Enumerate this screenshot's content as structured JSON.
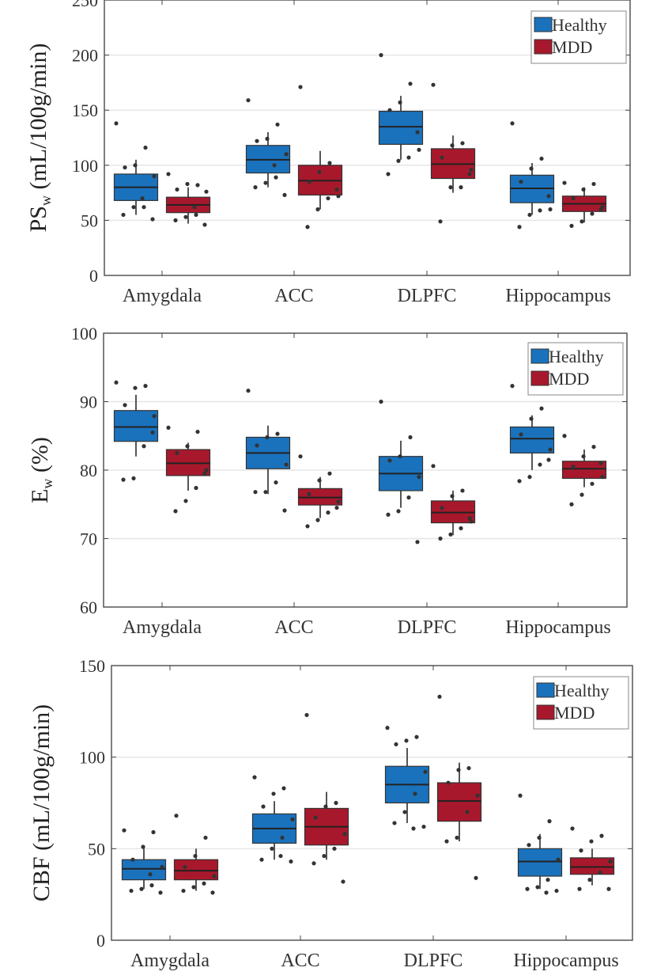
{
  "colors": {
    "healthy": "#1a72bd",
    "mdd": "#a8182c",
    "point": "#333333",
    "grid": "#e6e6e6"
  },
  "chart_data": [
    {
      "type": "box",
      "ylabel": {
        "main": "PS",
        "sub": "w",
        "unit": " (mL/100g/min)"
      },
      "ylim": [
        0,
        250
      ],
      "yticks": [
        "0",
        "50",
        "100",
        "150",
        "200",
        "250"
      ],
      "categories": [
        "Amygdala",
        "ACC",
        "DLPFC",
        "Hippocampus"
      ],
      "legend": {
        "position": "top-right",
        "entries": [
          "Healthy",
          "MDD"
        ]
      },
      "grid": true,
      "series": [
        {
          "name": "Healthy",
          "boxes": [
            {
              "q1": 68,
              "median": 80,
              "q3": 92,
              "whisker_low": 55,
              "whisker_high": 105,
              "points": [
                138,
                116,
                100,
                98,
                90,
                62,
                62,
                55,
                51,
                70
              ]
            },
            {
              "q1": 93,
              "median": 105,
              "q3": 118,
              "whisker_low": 80,
              "whisker_high": 130,
              "points": [
                159,
                137,
                124,
                122,
                110,
                89,
                84,
                80,
                73,
                100
              ]
            },
            {
              "q1": 119,
              "median": 135,
              "q3": 149,
              "whisker_low": 105,
              "whisker_high": 163,
              "points": [
                200,
                174,
                157,
                150,
                114,
                107,
                104,
                92,
                130
              ]
            },
            {
              "q1": 66,
              "median": 79,
              "q3": 91,
              "whisker_low": 55,
              "whisker_high": 102,
              "points": [
                138,
                106,
                97,
                85,
                60,
                59,
                55,
                44,
                72
              ]
            }
          ]
        },
        {
          "name": "MDD",
          "boxes": [
            {
              "q1": 57,
              "median": 64,
              "q3": 71,
              "whisker_low": 47,
              "whisker_high": 80,
              "points": [
                92,
                82,
                83,
                78,
                76,
                55,
                53,
                50,
                46,
                62
              ]
            },
            {
              "q1": 73,
              "median": 86,
              "q3": 100,
              "whisker_low": 60,
              "whisker_high": 113,
              "points": [
                171,
                102,
                94,
                85,
                72,
                70,
                60,
                44,
                78
              ]
            },
            {
              "q1": 88,
              "median": 101,
              "q3": 115,
              "whisker_low": 75,
              "whisker_high": 127,
              "points": [
                173,
                120,
                118,
                107,
                96,
                80,
                80,
                49,
                92
              ]
            },
            {
              "q1": 58,
              "median": 65,
              "q3": 72,
              "whisker_low": 48,
              "whisker_high": 80,
              "points": [
                84,
                83,
                78,
                70,
                62,
                56,
                49,
                45,
                60
              ]
            }
          ]
        }
      ]
    },
    {
      "type": "box",
      "ylabel": {
        "main": "E",
        "sub": "w",
        "unit": " (%)"
      },
      "ylim": [
        60,
        100
      ],
      "yticks": [
        "60",
        "70",
        "80",
        "90",
        "100"
      ],
      "categories": [
        "Amygdala",
        "ACC",
        "DLPFC",
        "Hippocampus"
      ],
      "legend": {
        "position": "top-right",
        "entries": [
          "Healthy",
          "MDD"
        ]
      },
      "grid": true,
      "series": [
        {
          "name": "Healthy",
          "boxes": [
            {
              "q1": 84.2,
              "median": 86.3,
              "q3": 88.7,
              "whisker_low": 82,
              "whisker_high": 91,
              "points": [
                92.8,
                92.3,
                92.0,
                89.5,
                87.9,
                83.5,
                78.8,
                78.6,
                85.5
              ]
            },
            {
              "q1": 80.2,
              "median": 82.5,
              "q3": 84.8,
              "whisker_low": 76.5,
              "whisker_high": 86.5,
              "points": [
                91.6,
                85.3,
                84.8,
                83.6,
                80.8,
                78.2,
                76.8,
                76.8,
                74.1
              ]
            },
            {
              "q1": 77.0,
              "median": 79.5,
              "q3": 82.0,
              "whisker_low": 74.5,
              "whisker_high": 84.3,
              "points": [
                90.0,
                84.8,
                82.0,
                81.4,
                79.0,
                76.0,
                74.0,
                73.5,
                69.5
              ]
            },
            {
              "q1": 82.5,
              "median": 84.6,
              "q3": 86.3,
              "whisker_low": 80,
              "whisker_high": 88,
              "points": [
                92.3,
                89.0,
                87.5,
                85.2,
                83.0,
                80.8,
                79.0,
                78.4,
                81.5
              ]
            }
          ]
        },
        {
          "name": "MDD",
          "boxes": [
            {
              "q1": 79.2,
              "median": 81.0,
              "q3": 83.0,
              "whisker_low": 77,
              "whisker_high": 84,
              "points": [
                86.2,
                85.6,
                83.5,
                82.5,
                80.0,
                77.4,
                75.5,
                74.0,
                79.5
              ]
            },
            {
              "q1": 74.9,
              "median": 76.0,
              "q3": 77.3,
              "whisker_low": 73,
              "whisker_high": 79,
              "points": [
                82.0,
                79.5,
                78.5,
                76.5,
                75.4,
                73.8,
                72.7,
                71.8,
                74.5
              ]
            },
            {
              "q1": 72.3,
              "median": 73.8,
              "q3": 75.5,
              "whisker_low": 70.5,
              "whisker_high": 77,
              "points": [
                80.6,
                77.0,
                76.2,
                74.5,
                72.5,
                71.5,
                70.6,
                70.0,
                73.0
              ]
            },
            {
              "q1": 78.8,
              "median": 80.2,
              "q3": 81.3,
              "whisker_low": 77.5,
              "whisker_high": 83,
              "points": [
                85.0,
                83.4,
                82.0,
                80.5,
                79.0,
                78.0,
                76.4,
                75.0,
                81.0
              ]
            }
          ]
        }
      ]
    },
    {
      "type": "box",
      "ylabel": {
        "main": "CBF",
        "sub": "",
        "unit": " (mL/100g/min)"
      },
      "ylim": [
        0,
        150
      ],
      "yticks": [
        "0",
        "50",
        "100",
        "150"
      ],
      "categories": [
        "Amygdala",
        "ACC",
        "DLPFC",
        "Hippocampus"
      ],
      "legend": {
        "position": "top-right",
        "entries": [
          "Healthy",
          "MDD"
        ]
      },
      "grid": true,
      "series": [
        {
          "name": "Healthy",
          "boxes": [
            {
              "q1": 33,
              "median": 39,
              "q3": 44,
              "whisker_low": 28,
              "whisker_high": 50,
              "points": [
                60,
                59,
                51,
                44,
                40,
                30,
                28,
                27,
                26,
                36
              ]
            },
            {
              "q1": 53,
              "median": 61,
              "q3": 69,
              "whisker_low": 44,
              "whisker_high": 76,
              "points": [
                89,
                83,
                80,
                73,
                66,
                56,
                50,
                44,
                43,
                46
              ]
            },
            {
              "q1": 75,
              "median": 85,
              "q3": 95,
              "whisker_low": 64,
              "whisker_high": 105,
              "points": [
                116,
                111,
                109,
                107,
                92,
                80,
                70,
                64,
                62,
                61
              ]
            },
            {
              "q1": 35,
              "median": 43,
              "q3": 50,
              "whisker_low": 28,
              "whisker_high": 58,
              "points": [
                79,
                65,
                56,
                52,
                44,
                33,
                29,
                28,
                27,
                26
              ]
            }
          ]
        },
        {
          "name": "MDD",
          "boxes": [
            {
              "q1": 33,
              "median": 38,
              "q3": 44,
              "whisker_low": 27,
              "whisker_high": 50,
              "points": [
                68,
                56,
                46,
                40,
                35,
                31,
                29,
                27,
                26
              ]
            },
            {
              "q1": 52,
              "median": 62,
              "q3": 72,
              "whisker_low": 44,
              "whisker_high": 81,
              "points": [
                123,
                75,
                73,
                67,
                58,
                50,
                46,
                42,
                32
              ]
            },
            {
              "q1": 65,
              "median": 76,
              "q3": 86,
              "whisker_low": 54,
              "whisker_high": 97,
              "points": [
                133,
                94,
                93,
                86,
                79,
                70,
                56,
                54,
                34
              ]
            },
            {
              "q1": 36,
              "median": 40,
              "q3": 45,
              "whisker_low": 30,
              "whisker_high": 50,
              "points": [
                61,
                57,
                54,
                49,
                43,
                37,
                33,
                28,
                28
              ]
            }
          ]
        }
      ]
    }
  ]
}
